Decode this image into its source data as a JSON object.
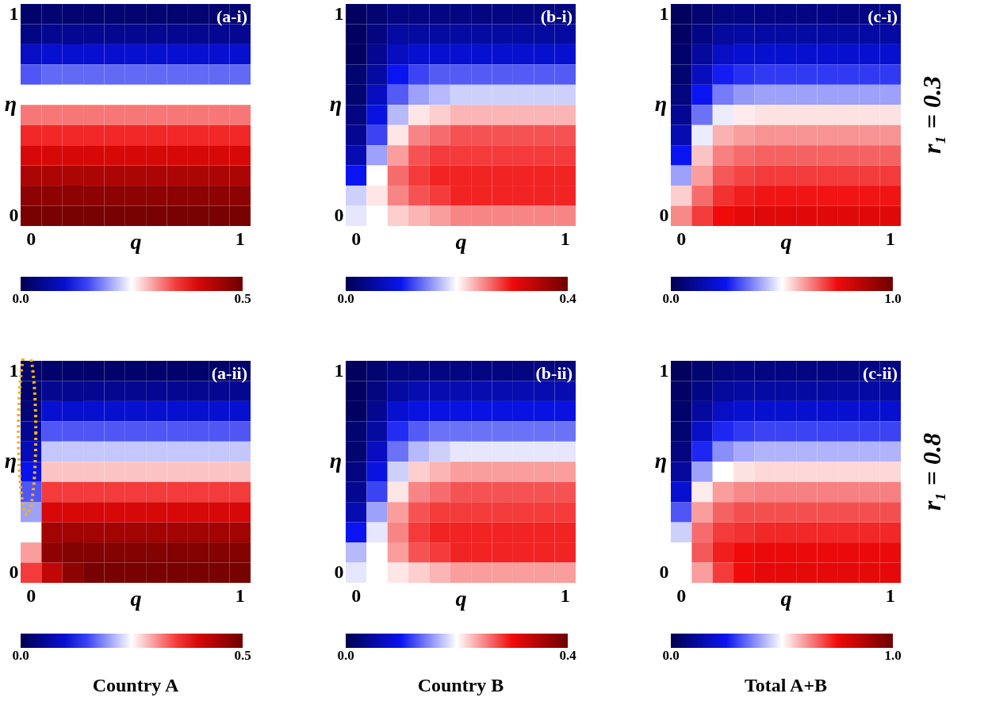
{
  "chart_data": [
    {
      "type": "heatmap",
      "xlabel": "q",
      "ylabel": "η",
      "annotations": [
        "(a-i)"
      ],
      "clim": [
        0,
        0.5
      ],
      "cticks": [
        {
          "value": 0,
          "label": "0.0"
        },
        {
          "value": 0.5,
          "label": "0.5"
        }
      ],
      "categories": [
        "0",
        null,
        null,
        null,
        null,
        null,
        null,
        null,
        null,
        null,
        "1"
      ],
      "y_categories": [
        "1",
        null,
        null,
        null,
        null,
        null,
        null,
        null,
        null,
        null,
        "0"
      ],
      "cells": [
        [
          0.02,
          0.025,
          0.025,
          0.025,
          0.025,
          0.025,
          0.025,
          0.025,
          0.025,
          0.025,
          0.025
        ],
        [
          0.04,
          0.05,
          0.05,
          0.05,
          0.05,
          0.05,
          0.05,
          0.05,
          0.05,
          0.05,
          0.05
        ],
        [
          0.09,
          0.1,
          0.1,
          0.1,
          0.1,
          0.1,
          0.1,
          0.1,
          0.1,
          0.1,
          0.1
        ],
        [
          0.16,
          0.17,
          0.17,
          0.17,
          0.17,
          0.17,
          0.17,
          0.17,
          0.17,
          0.17,
          0.17
        ],
        [
          0.25,
          0.25,
          0.25,
          0.25,
          0.25,
          0.25,
          0.25,
          0.25,
          0.25,
          0.25,
          0.25
        ],
        [
          0.32,
          0.32,
          0.32,
          0.32,
          0.32,
          0.32,
          0.32,
          0.32,
          0.32,
          0.32,
          0.32
        ],
        [
          0.36,
          0.36,
          0.36,
          0.36,
          0.36,
          0.36,
          0.36,
          0.36,
          0.36,
          0.36,
          0.36
        ],
        [
          0.4,
          0.4,
          0.4,
          0.4,
          0.4,
          0.4,
          0.4,
          0.4,
          0.4,
          0.4,
          0.4
        ],
        [
          0.44,
          0.44,
          0.44,
          0.44,
          0.44,
          0.44,
          0.44,
          0.44,
          0.44,
          0.44,
          0.44
        ],
        [
          0.47,
          0.47,
          0.47,
          0.47,
          0.47,
          0.47,
          0.47,
          0.47,
          0.47,
          0.47,
          0.47
        ],
        [
          0.49,
          0.49,
          0.49,
          0.49,
          0.49,
          0.49,
          0.49,
          0.49,
          0.49,
          0.49,
          0.49
        ]
      ]
    },
    {
      "type": "heatmap",
      "xlabel": "q",
      "ylabel": "η",
      "annotations": [
        "(b-i)"
      ],
      "clim": [
        0,
        0.4
      ],
      "cticks": [
        {
          "value": 0,
          "label": "0.0"
        },
        {
          "value": 0.4,
          "label": "0.4"
        }
      ],
      "categories": [
        "0",
        null,
        null,
        null,
        null,
        null,
        null,
        null,
        null,
        null,
        "1"
      ],
      "y_categories": [
        "1",
        null,
        null,
        null,
        null,
        null,
        null,
        null,
        null,
        null,
        "0"
      ],
      "cells": [
        [
          0.01,
          0.02,
          0.03,
          0.03,
          0.03,
          0.03,
          0.03,
          0.03,
          0.03,
          0.03,
          0.03
        ],
        [
          0.01,
          0.03,
          0.05,
          0.05,
          0.05,
          0.05,
          0.05,
          0.05,
          0.05,
          0.05,
          0.05
        ],
        [
          0.01,
          0.04,
          0.07,
          0.08,
          0.08,
          0.08,
          0.08,
          0.08,
          0.08,
          0.08,
          0.08
        ],
        [
          0.02,
          0.05,
          0.1,
          0.12,
          0.13,
          0.13,
          0.13,
          0.13,
          0.13,
          0.13,
          0.13
        ],
        [
          0.02,
          0.07,
          0.13,
          0.16,
          0.17,
          0.18,
          0.18,
          0.18,
          0.18,
          0.18,
          0.18
        ],
        [
          0.03,
          0.09,
          0.17,
          0.21,
          0.22,
          0.23,
          0.23,
          0.23,
          0.23,
          0.23,
          0.23
        ],
        [
          0.04,
          0.12,
          0.21,
          0.25,
          0.26,
          0.27,
          0.27,
          0.27,
          0.27,
          0.27,
          0.27
        ],
        [
          0.06,
          0.16,
          0.24,
          0.27,
          0.28,
          0.28,
          0.28,
          0.28,
          0.28,
          0.28,
          0.28
        ],
        [
          0.1,
          0.2,
          0.26,
          0.28,
          0.29,
          0.29,
          0.29,
          0.29,
          0.29,
          0.29,
          0.29
        ],
        [
          0.18,
          0.21,
          0.25,
          0.27,
          0.28,
          0.29,
          0.29,
          0.29,
          0.29,
          0.29,
          0.29
        ],
        [
          0.19,
          0.2,
          0.22,
          0.23,
          0.24,
          0.25,
          0.25,
          0.25,
          0.25,
          0.25,
          0.25
        ]
      ]
    },
    {
      "type": "heatmap",
      "xlabel": "q",
      "ylabel": "η",
      "annotations": [
        "(c-i)",
        "r₁ = 0.3"
      ],
      "clim": [
        0,
        1
      ],
      "cticks": [
        {
          "value": 0,
          "label": "0.0"
        },
        {
          "value": 1,
          "label": "1.0"
        }
      ],
      "categories": [
        "0",
        null,
        null,
        null,
        null,
        null,
        null,
        null,
        null,
        null,
        "1"
      ],
      "y_categories": [
        "1",
        null,
        null,
        null,
        null,
        null,
        null,
        null,
        null,
        null,
        "0"
      ],
      "cells": [
        [
          0.02,
          0.05,
          0.07,
          0.08,
          0.08,
          0.08,
          0.08,
          0.08,
          0.08,
          0.08,
          0.08
        ],
        [
          0.03,
          0.08,
          0.12,
          0.13,
          0.13,
          0.13,
          0.13,
          0.13,
          0.13,
          0.13,
          0.13
        ],
        [
          0.04,
          0.12,
          0.18,
          0.2,
          0.2,
          0.2,
          0.2,
          0.2,
          0.2,
          0.2,
          0.2
        ],
        [
          0.05,
          0.17,
          0.26,
          0.28,
          0.29,
          0.29,
          0.29,
          0.29,
          0.29,
          0.29,
          0.29
        ],
        [
          0.07,
          0.25,
          0.36,
          0.39,
          0.4,
          0.4,
          0.4,
          0.4,
          0.4,
          0.4,
          0.4
        ],
        [
          0.1,
          0.35,
          0.48,
          0.52,
          0.53,
          0.53,
          0.53,
          0.53,
          0.53,
          0.53,
          0.53
        ],
        [
          0.15,
          0.48,
          0.58,
          0.6,
          0.61,
          0.61,
          0.61,
          0.61,
          0.61,
          0.61,
          0.61
        ],
        [
          0.25,
          0.56,
          0.63,
          0.65,
          0.66,
          0.66,
          0.66,
          0.66,
          0.66,
          0.66,
          0.66
        ],
        [
          0.4,
          0.6,
          0.67,
          0.69,
          0.7,
          0.7,
          0.7,
          0.7,
          0.7,
          0.7,
          0.7
        ],
        [
          0.55,
          0.65,
          0.71,
          0.73,
          0.74,
          0.74,
          0.74,
          0.74,
          0.74,
          0.74,
          0.74
        ],
        [
          0.62,
          0.7,
          0.75,
          0.77,
          0.78,
          0.78,
          0.78,
          0.78,
          0.78,
          0.78,
          0.78
        ]
      ]
    },
    {
      "type": "heatmap",
      "xlabel": "q",
      "ylabel": "η",
      "annotations": [
        "(a-ii)",
        "Country A"
      ],
      "clim": [
        0,
        0.5
      ],
      "cticks": [
        {
          "value": 0,
          "label": "0.0"
        },
        {
          "value": 0.5,
          "label": "0.5"
        }
      ],
      "categories": [
        "0",
        null,
        null,
        null,
        null,
        null,
        null,
        null,
        null,
        null,
        "1"
      ],
      "y_categories": [
        "1",
        null,
        null,
        null,
        null,
        null,
        null,
        null,
        null,
        null,
        "0"
      ],
      "cells": [
        [
          0.02,
          0.02,
          0.02,
          0.02,
          0.02,
          0.02,
          0.02,
          0.02,
          0.02,
          0.02,
          0.02
        ],
        [
          0.02,
          0.05,
          0.05,
          0.05,
          0.05,
          0.05,
          0.05,
          0.05,
          0.05,
          0.05,
          0.05
        ],
        [
          0.03,
          0.1,
          0.1,
          0.1,
          0.1,
          0.1,
          0.1,
          0.1,
          0.1,
          0.1,
          0.1
        ],
        [
          0.05,
          0.16,
          0.16,
          0.16,
          0.16,
          0.16,
          0.16,
          0.16,
          0.16,
          0.16,
          0.16
        ],
        [
          0.08,
          0.22,
          0.22,
          0.22,
          0.22,
          0.22,
          0.22,
          0.22,
          0.22,
          0.22,
          0.22
        ],
        [
          0.12,
          0.28,
          0.28,
          0.28,
          0.28,
          0.28,
          0.28,
          0.28,
          0.28,
          0.28,
          0.28
        ],
        [
          0.16,
          0.35,
          0.35,
          0.35,
          0.35,
          0.35,
          0.35,
          0.35,
          0.35,
          0.35,
          0.35
        ],
        [
          0.2,
          0.4,
          0.4,
          0.4,
          0.4,
          0.4,
          0.4,
          0.4,
          0.4,
          0.4,
          0.4
        ],
        [
          0.25,
          0.45,
          0.45,
          0.45,
          0.45,
          0.45,
          0.45,
          0.45,
          0.45,
          0.45,
          0.45
        ],
        [
          0.3,
          0.47,
          0.48,
          0.48,
          0.48,
          0.48,
          0.48,
          0.48,
          0.48,
          0.48,
          0.48
        ],
        [
          0.35,
          0.42,
          0.47,
          0.49,
          0.49,
          0.49,
          0.49,
          0.49,
          0.49,
          0.49,
          0.49
        ]
      ]
    },
    {
      "type": "heatmap",
      "xlabel": "q",
      "ylabel": "η",
      "annotations": [
        "(b-ii)",
        "Country B"
      ],
      "clim": [
        0,
        0.4
      ],
      "cticks": [
        {
          "value": 0,
          "label": "0.0"
        },
        {
          "value": 0.4,
          "label": "0.4"
        }
      ],
      "categories": [
        "0",
        null,
        null,
        null,
        null,
        null,
        null,
        null,
        null,
        null,
        "1"
      ],
      "y_categories": [
        "1",
        null,
        null,
        null,
        null,
        null,
        null,
        null,
        null,
        null,
        "0"
      ],
      "cells": [
        [
          0.01,
          0.02,
          0.03,
          0.03,
          0.03,
          0.03,
          0.03,
          0.03,
          0.03,
          0.03,
          0.03
        ],
        [
          0.01,
          0.03,
          0.05,
          0.06,
          0.06,
          0.06,
          0.06,
          0.06,
          0.06,
          0.06,
          0.06
        ],
        [
          0.01,
          0.04,
          0.08,
          0.09,
          0.09,
          0.09,
          0.09,
          0.09,
          0.09,
          0.09,
          0.09
        ],
        [
          0.02,
          0.05,
          0.11,
          0.13,
          0.14,
          0.14,
          0.14,
          0.14,
          0.14,
          0.14,
          0.14
        ],
        [
          0.02,
          0.07,
          0.14,
          0.17,
          0.18,
          0.19,
          0.19,
          0.19,
          0.19,
          0.19,
          0.19
        ],
        [
          0.03,
          0.09,
          0.18,
          0.22,
          0.23,
          0.24,
          0.24,
          0.24,
          0.24,
          0.24,
          0.24
        ],
        [
          0.04,
          0.12,
          0.21,
          0.25,
          0.26,
          0.27,
          0.27,
          0.27,
          0.27,
          0.27,
          0.27
        ],
        [
          0.06,
          0.16,
          0.24,
          0.27,
          0.28,
          0.28,
          0.28,
          0.28,
          0.28,
          0.28,
          0.28
        ],
        [
          0.1,
          0.19,
          0.25,
          0.28,
          0.29,
          0.29,
          0.29,
          0.29,
          0.29,
          0.29,
          0.29
        ],
        [
          0.17,
          0.2,
          0.24,
          0.27,
          0.28,
          0.29,
          0.29,
          0.29,
          0.29,
          0.29,
          0.29
        ],
        [
          0.19,
          0.2,
          0.21,
          0.22,
          0.23,
          0.24,
          0.24,
          0.24,
          0.24,
          0.24,
          0.24
        ]
      ]
    },
    {
      "type": "heatmap",
      "xlabel": "q",
      "ylabel": "η",
      "annotations": [
        "(c-ii)",
        "r₁ = 0.8",
        "Total A+B"
      ],
      "clim": [
        0,
        1
      ],
      "cticks": [
        {
          "value": 0,
          "label": "0.0"
        },
        {
          "value": 1,
          "label": "1.0"
        }
      ],
      "categories": [
        "0",
        null,
        null,
        null,
        null,
        null,
        null,
        null,
        null,
        null,
        "1"
      ],
      "y_categories": [
        "1",
        null,
        null,
        null,
        null,
        null,
        null,
        null,
        null,
        null,
        "0"
      ],
      "cells": [
        [
          0.02,
          0.05,
          0.07,
          0.08,
          0.08,
          0.08,
          0.08,
          0.08,
          0.08,
          0.08,
          0.08
        ],
        [
          0.03,
          0.08,
          0.12,
          0.13,
          0.13,
          0.13,
          0.13,
          0.13,
          0.13,
          0.13,
          0.13
        ],
        [
          0.04,
          0.12,
          0.18,
          0.2,
          0.2,
          0.2,
          0.2,
          0.2,
          0.2,
          0.2,
          0.2
        ],
        [
          0.05,
          0.18,
          0.27,
          0.29,
          0.3,
          0.3,
          0.3,
          0.3,
          0.3,
          0.3,
          0.3
        ],
        [
          0.07,
          0.27,
          0.38,
          0.41,
          0.42,
          0.42,
          0.42,
          0.42,
          0.42,
          0.42,
          0.42
        ],
        [
          0.12,
          0.4,
          0.5,
          0.53,
          0.54,
          0.54,
          0.54,
          0.54,
          0.54,
          0.54,
          0.54
        ],
        [
          0.2,
          0.52,
          0.6,
          0.62,
          0.63,
          0.63,
          0.63,
          0.63,
          0.63,
          0.63,
          0.63
        ],
        [
          0.32,
          0.6,
          0.66,
          0.68,
          0.68,
          0.68,
          0.68,
          0.68,
          0.68,
          0.68,
          0.68
        ],
        [
          0.45,
          0.65,
          0.7,
          0.71,
          0.72,
          0.72,
          0.72,
          0.72,
          0.72,
          0.72,
          0.72
        ],
        [
          0.5,
          0.67,
          0.73,
          0.75,
          0.76,
          0.76,
          0.76,
          0.76,
          0.76,
          0.76,
          0.76
        ],
        [
          0.5,
          0.6,
          0.7,
          0.75,
          0.77,
          0.77,
          0.77,
          0.77,
          0.77,
          0.77,
          0.77
        ]
      ]
    }
  ]
}
